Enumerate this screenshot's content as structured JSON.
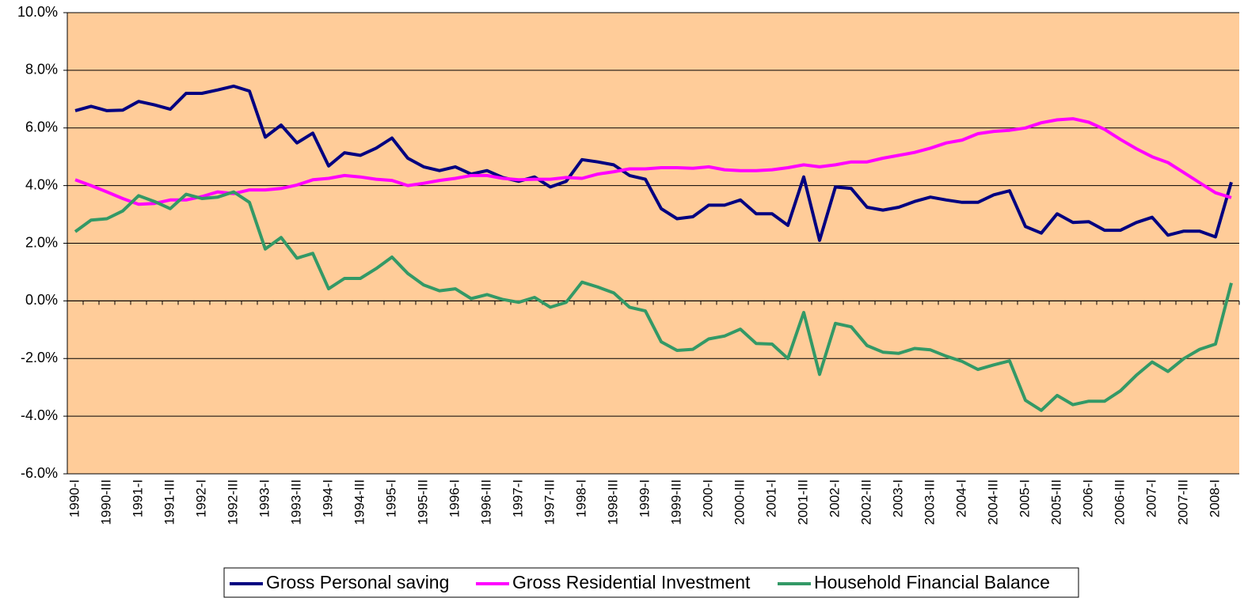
{
  "chart_data": {
    "type": "line",
    "categories": [
      "1990-I",
      null,
      "1990-III",
      null,
      "1991-I",
      null,
      "1991-III",
      null,
      "1992-I",
      null,
      "1992-III",
      null,
      "1993-I",
      null,
      "1993-III",
      null,
      "1994-I",
      null,
      "1994-III",
      null,
      "1995-I",
      null,
      "1995-III",
      null,
      "1996-I",
      null,
      "1996-III",
      null,
      "1997-I",
      null,
      "1997-III",
      null,
      "1998-I",
      null,
      "1998-III",
      null,
      "1999-I",
      null,
      "1999-III",
      null,
      "2000-I",
      null,
      "2000-III",
      null,
      "2001-I",
      null,
      "2001-III",
      null,
      "2002-I",
      null,
      "2002-III",
      null,
      "2003-I",
      null,
      "2003-III",
      null,
      "2004-I",
      null,
      "2004-III",
      null,
      "2005-I",
      null,
      "2005-III",
      null,
      "2006-I",
      null,
      "2006-III",
      null,
      "2007-I",
      null,
      "2007-III",
      null,
      "2008-I",
      null
    ],
    "series": [
      {
        "name": "Gross Personal saving",
        "color": "#000080",
        "values": [
          6.6,
          6.75,
          6.6,
          6.62,
          6.92,
          6.8,
          6.65,
          7.2,
          7.2,
          7.32,
          7.45,
          7.28,
          5.68,
          6.1,
          5.48,
          5.82,
          4.68,
          5.14,
          5.05,
          5.3,
          5.65,
          4.95,
          4.65,
          4.52,
          4.65,
          4.4,
          4.52,
          4.28,
          4.15,
          4.3,
          3.95,
          4.15,
          4.9,
          4.82,
          4.72,
          4.35,
          4.22,
          3.2,
          2.85,
          2.92,
          3.32,
          3.32,
          3.5,
          3.02,
          3.02,
          2.62,
          4.3,
          2.1,
          3.95,
          3.9,
          3.25,
          3.15,
          3.25,
          3.45,
          3.6,
          3.5,
          3.42,
          3.42,
          3.68,
          3.82,
          2.58,
          2.35,
          3.02,
          2.72,
          2.75,
          2.45,
          2.45,
          2.72,
          2.9,
          2.28,
          2.42,
          2.42,
          2.22,
          4.12
        ]
      },
      {
        "name": "Gross Residential Investment",
        "color": "#ff00ff",
        "values": [
          4.2,
          4.0,
          3.78,
          3.55,
          3.35,
          3.38,
          3.5,
          3.5,
          3.62,
          3.78,
          3.72,
          3.85,
          3.85,
          3.9,
          4.02,
          4.2,
          4.25,
          4.35,
          4.3,
          4.22,
          4.18,
          4.0,
          4.08,
          4.18,
          4.25,
          4.35,
          4.35,
          4.25,
          4.2,
          4.22,
          4.22,
          4.28,
          4.25,
          4.4,
          4.48,
          4.58,
          4.58,
          4.62,
          4.62,
          4.6,
          4.65,
          4.55,
          4.52,
          4.52,
          4.55,
          4.62,
          4.72,
          4.65,
          4.72,
          4.82,
          4.82,
          4.95,
          5.05,
          5.15,
          5.3,
          5.48,
          5.58,
          5.8,
          5.88,
          5.92,
          6.0,
          6.18,
          6.28,
          6.32,
          6.2,
          5.95,
          5.6,
          5.28,
          5.0,
          4.8,
          4.45,
          4.1,
          3.75,
          3.58
        ]
      },
      {
        "name": "Household Financial Balance",
        "color": "#339966",
        "values": [
          2.4,
          2.8,
          2.85,
          3.12,
          3.65,
          3.45,
          3.2,
          3.7,
          3.55,
          3.6,
          3.78,
          3.42,
          1.8,
          2.2,
          1.48,
          1.65,
          0.42,
          0.78,
          0.78,
          1.12,
          1.52,
          0.95,
          0.55,
          0.35,
          0.42,
          0.08,
          0.22,
          0.05,
          -0.05,
          0.12,
          -0.22,
          -0.05,
          0.65,
          0.48,
          0.28,
          -0.22,
          -0.35,
          -1.42,
          -1.72,
          -1.68,
          -1.32,
          -1.22,
          -0.98,
          -1.48,
          -1.5,
          -2.0,
          -0.4,
          -2.55,
          -0.78,
          -0.9,
          -1.55,
          -1.78,
          -1.82,
          -1.65,
          -1.7,
          -1.92,
          -2.1,
          -2.38,
          -2.22,
          -2.08,
          -3.45,
          -3.8,
          -3.28,
          -3.6,
          -3.48,
          -3.48,
          -3.12,
          -2.58,
          -2.12,
          -2.45,
          -2.0,
          -1.68,
          -1.5,
          0.62
        ]
      }
    ],
    "ylim": [
      -6,
      10
    ],
    "yticks": [
      {
        "value": -6,
        "label": "-6.0%"
      },
      {
        "value": -4,
        "label": "-4.0%"
      },
      {
        "value": -2,
        "label": "-2.0%"
      },
      {
        "value": 0,
        "label": "0.0%"
      },
      {
        "value": 2,
        "label": "2.0%"
      },
      {
        "value": 4,
        "label": "4.0%"
      },
      {
        "value": 6,
        "label": "6.0%"
      },
      {
        "value": 8,
        "label": "8.0%"
      },
      {
        "value": 10,
        "label": "10.0%"
      }
    ],
    "grid": true,
    "legend": "bottom"
  }
}
